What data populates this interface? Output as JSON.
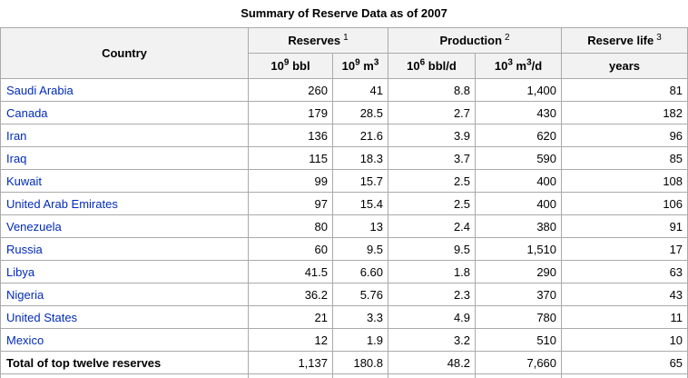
{
  "title": "Summary of Reserve Data as of 2007",
  "colors": {
    "link_blue": "#002bb8",
    "header_bg": "#f2f2f2",
    "border": "#aaaaaa",
    "text": "#000000"
  },
  "table": {
    "top_header": [
      {
        "label": "Country",
        "sup": ""
      },
      {
        "label": "Reserves",
        "sup": "1"
      },
      {
        "label": "Production",
        "sup": "2"
      },
      {
        "label": "Reserve life",
        "sup": "3"
      }
    ],
    "unit_header": [
      {
        "name": "reserves-bbl",
        "segments": [
          {
            "t": "10"
          },
          {
            "s": "9"
          },
          {
            "t": " bbl"
          }
        ]
      },
      {
        "name": "reserves-m3",
        "segments": [
          {
            "t": "10"
          },
          {
            "s": "9"
          },
          {
            "t": " m"
          },
          {
            "s": "3"
          }
        ]
      },
      {
        "name": "production-bbld",
        "segments": [
          {
            "t": "10"
          },
          {
            "s": "6"
          },
          {
            "t": " bbl/d"
          }
        ]
      },
      {
        "name": "production-m3d",
        "segments": [
          {
            "t": "10"
          },
          {
            "s": "3"
          },
          {
            "t": " m"
          },
          {
            "s": "3"
          },
          {
            "t": "/d"
          }
        ]
      },
      {
        "name": "reserve-life-years",
        "segments": [
          {
            "t": "years"
          }
        ]
      }
    ],
    "column_keys": [
      "reserves-bbl",
      "reserves-m3",
      "production-bbld",
      "production-m3d",
      "reserve-life-years"
    ],
    "rows": [
      {
        "country": "Saudi Arabia",
        "values": [
          "260",
          "41",
          "8.8",
          "1,400",
          "81"
        ]
      },
      {
        "country": "Canada",
        "values": [
          "179",
          "28.5",
          "2.7",
          "430",
          "182"
        ]
      },
      {
        "country": "Iran",
        "values": [
          "136",
          "21.6",
          "3.9",
          "620",
          "96"
        ]
      },
      {
        "country": "Iraq",
        "values": [
          "115",
          "18.3",
          "3.7",
          "590",
          "85"
        ]
      },
      {
        "country": "Kuwait",
        "values": [
          "99",
          "15.7",
          "2.5",
          "400",
          "108"
        ]
      },
      {
        "country": "United Arab Emirates",
        "values": [
          "97",
          "15.4",
          "2.5",
          "400",
          "106"
        ]
      },
      {
        "country": "Venezuela",
        "values": [
          "80",
          "13",
          "2.4",
          "380",
          "91"
        ]
      },
      {
        "country": "Russia",
        "values": [
          "60",
          "9.5",
          "9.5",
          "1,510",
          "17"
        ]
      },
      {
        "country": "Libya",
        "values": [
          "41.5",
          "6.60",
          "1.8",
          "290",
          "63"
        ]
      },
      {
        "country": "Nigeria",
        "values": [
          "36.2",
          "5.76",
          "2.3",
          "370",
          "43"
        ]
      },
      {
        "country": "United States",
        "values": [
          "21",
          "3.3",
          "4.9",
          "780",
          "11"
        ]
      },
      {
        "country": "Mexico",
        "values": [
          "12",
          "1.9",
          "3.2",
          "510",
          "10"
        ]
      }
    ],
    "total_row": {
      "label": "Total of top twelve reserves",
      "values": [
        "1,137",
        "180.8",
        "48.2",
        "7,660",
        "65"
      ]
    }
  }
}
